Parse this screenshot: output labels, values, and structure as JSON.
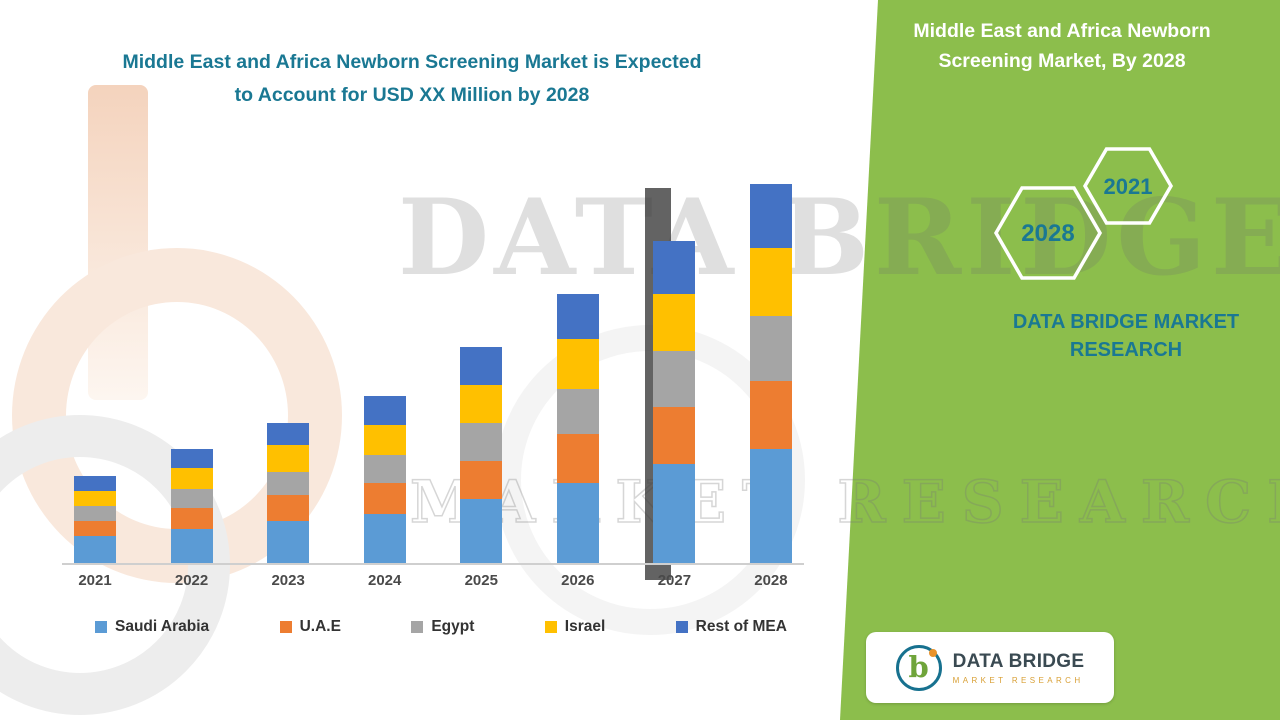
{
  "header": {
    "title_line1": "Middle East and Africa Newborn Screening Market is Expected",
    "title_line2": "to Account for USD XX Million  by 2028"
  },
  "right_panel": {
    "title": "Middle East and Africa Newborn Screening Market, By 2028",
    "hexagons": [
      {
        "label": "2028"
      },
      {
        "label": "2021"
      }
    ],
    "brand_text": "DATA BRIDGE MARKET RESEARCH"
  },
  "watermark": {
    "line1": "DATA BRIDGE",
    "line2": "MARKET RESEARCH"
  },
  "logo_card": {
    "monogram": "b",
    "name": "DATA BRIDGE",
    "subtitle": "MARKET RESEARCH"
  },
  "colors": {
    "panel_green": "#8CBE4C",
    "teal_text": "#1A7893",
    "axis_label": "#4A4A4A"
  },
  "chart_data": {
    "type": "bar",
    "stacked": true,
    "title": "Middle East and Africa Newborn Screening Market is Expected to Account for USD XX Million by 2028",
    "xlabel": "",
    "ylabel": "",
    "ylim": [
      0,
      102
    ],
    "grid": false,
    "legend_position": "bottom",
    "categories": [
      "2021",
      "2022",
      "2023",
      "2024",
      "2025",
      "2026",
      "2027",
      "2028"
    ],
    "series": [
      {
        "name": "Saudi Arabia",
        "color": "#5B9BD5",
        "values": [
          7,
          9,
          11,
          13,
          17,
          21,
          26,
          30
        ]
      },
      {
        "name": "U.A.E",
        "color": "#ED7D31",
        "values": [
          4,
          5.5,
          7,
          8,
          10,
          13,
          15,
          18
        ]
      },
      {
        "name": "Egypt",
        "color": "#A5A5A5",
        "values": [
          4,
          5,
          6,
          7.5,
          10,
          12,
          15,
          17
        ]
      },
      {
        "name": "Israel",
        "color": "#FFC000",
        "values": [
          4,
          5.5,
          7,
          8,
          10,
          13,
          15,
          18
        ]
      },
      {
        "name": "Rest of MEA",
        "color": "#4472C4",
        "values": [
          4,
          5,
          6,
          7.5,
          10,
          12,
          14,
          17
        ]
      }
    ]
  }
}
